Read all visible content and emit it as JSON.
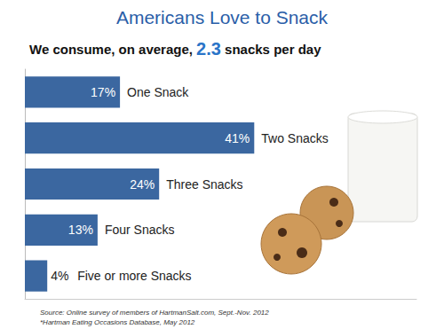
{
  "chart_data": {
    "type": "bar",
    "title": "Americans Love to Snack",
    "subtitle": "We consume, on average, 2.3 snacks per day",
    "categories": [
      "One Snack",
      "Two Snacks",
      "Three Snacks",
      "Four Snacks",
      "Five or more Snacks"
    ],
    "values": [
      17,
      41,
      24,
      13,
      4
    ],
    "value_labels": [
      "17%",
      "41%",
      "24%",
      "13%",
      "4%"
    ],
    "color": "#3b67a0",
    "orientation": "horizontal",
    "data_labels": true,
    "tick_labels": false,
    "grid": false,
    "xlim": [
      0,
      70
    ],
    "annotations": [
      "Source: Online survey of members of HartmanSalt.com, Sept.-Nov. 2012",
      "*Hartman Eating Occasions Database, May 2012"
    ]
  }
}
